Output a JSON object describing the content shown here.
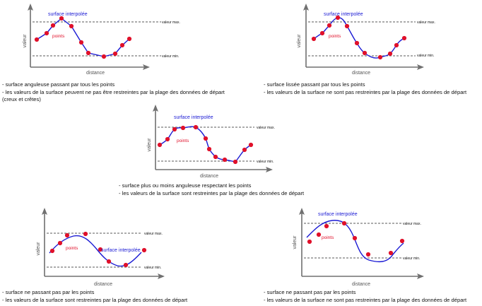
{
  "colors": {
    "axis": "#707070",
    "curve": "#1a1ad4",
    "points": "#e0102a",
    "dashed": "#222222",
    "text": "#111111"
  },
  "panels": [
    {
      "id": "p1",
      "labels": {
        "ylabel": "valeur",
        "xlabel": "distance",
        "curve": "surface interpolée",
        "points": "points",
        "max": "valeur max.",
        "min": "valeur min."
      },
      "caption": [
        "- surface anguleuse passant par tous les points",
        "- les valeurs de la surface peuvent ne pas être restreintes par la plage des données de départ",
        "  (creux et crêtes)"
      ],
      "style": "angular"
    },
    {
      "id": "p2",
      "labels": {
        "ylabel": "valeur",
        "xlabel": "distance",
        "curve": "surface interpolée",
        "points": "points",
        "max": "valeur max.",
        "min": "valeur min."
      },
      "caption": [
        "- surface lissée passant par tous les points",
        "- les valeurs de la surface ne sont pas restreintes par la plage des données de départ"
      ],
      "style": "smooth"
    },
    {
      "id": "p3",
      "labels": {
        "ylabel": "valeur",
        "xlabel": "distance",
        "curve": "surface interpolée",
        "points": "points",
        "max": "valeur max.",
        "min": "valeur min."
      },
      "caption": [
        "- surface plus ou moins anguleuse respectant  les points",
        "- les valeurs de la surface sont restreintes par la plage des données de départ"
      ],
      "style": "semi"
    },
    {
      "id": "p4",
      "labels": {
        "ylabel": "valeur",
        "xlabel": "distance",
        "curve": "surface interpolée",
        "points": "points",
        "max": "valeur max.",
        "min": "valeur min."
      },
      "caption": [
        "- surface ne passant pas par les points",
        "- les valeurs de la surface sont restreintes par la plage des données de départ"
      ],
      "style": "approx"
    },
    {
      "id": "p5",
      "labels": {
        "ylabel": "valeur",
        "xlabel": "distance",
        "curve": "surface interpolée",
        "points": "points",
        "max": "valeur max.",
        "min": "valeur min."
      },
      "caption": [
        "- surface ne passant pas par les points",
        "- les valeurs de la surface ne sont pas restreintes par la plage des données de départ"
      ],
      "style": "approx-overshoot"
    }
  ]
}
